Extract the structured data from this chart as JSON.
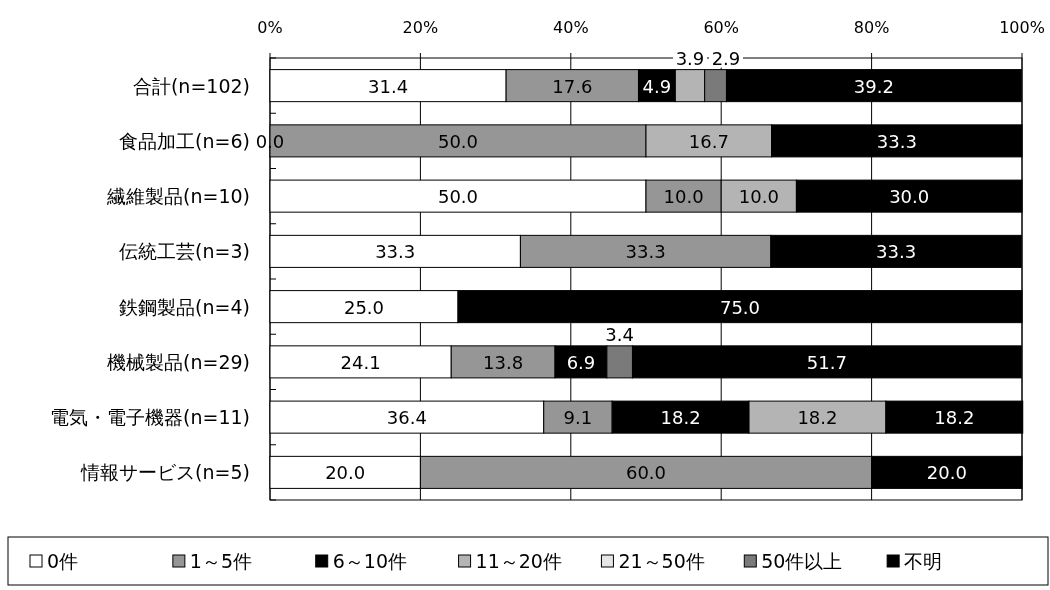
{
  "chart_data": {
    "type": "bar",
    "orientation": "horizontal",
    "stacked": true,
    "categories": [
      "合計(n=102)",
      "食品加工(n=6)",
      "繊維製品(n=10)",
      "伝統工芸(n=3)",
      "鉄鋼製品(n=4)",
      "機械製品(n=29)",
      "電気・電子機器(n=11)",
      "情報サービス(n=5)"
    ],
    "series": [
      {
        "name": "0件",
        "color": "#ffffff",
        "values": [
          31.4,
          null,
          50.0,
          33.3,
          25.0,
          24.1,
          36.4,
          20.0
        ],
        "value_labels": [
          "31.4",
          null,
          "50.0",
          "33.3",
          "25.0",
          "24.1",
          "36.4",
          "20.0"
        ]
      },
      {
        "name": "1～5件",
        "color": "#969696",
        "values": [
          17.6,
          50.0,
          10.0,
          33.3,
          null,
          13.8,
          9.1,
          60.0
        ],
        "value_labels": [
          "17.6",
          "50.0",
          "10.0",
          "33.3",
          null,
          "13.8",
          "9.1",
          "60.0"
        ]
      },
      {
        "name": "6～10件",
        "color": "#000000",
        "values": [
          4.9,
          null,
          null,
          null,
          null,
          6.9,
          18.2,
          null
        ],
        "value_labels": [
          "4.9",
          null,
          null,
          null,
          null,
          "6.9",
          "18.2",
          null
        ]
      },
      {
        "name": "11～20件",
        "color": "#b4b4b4",
        "values": [
          3.9,
          16.7,
          10.0,
          null,
          null,
          null,
          18.2,
          null
        ],
        "value_labels": [
          "3.9",
          "16.7",
          "10.0",
          null,
          null,
          null,
          "18.2",
          null
        ]
      },
      {
        "name": "21～50件",
        "color": "#e6e6e6",
        "values": [
          null,
          null,
          null,
          null,
          null,
          null,
          null,
          null
        ]
      },
      {
        "name": "50件以上",
        "color": "#7a7a7a",
        "values": [
          2.9,
          null,
          null,
          null,
          null,
          3.4,
          null,
          null
        ],
        "value_labels": [
          "2.9",
          null,
          null,
          null,
          null,
          "3.4",
          null,
          null
        ]
      },
      {
        "name": "不明",
        "color": "#000001",
        "values": [
          39.2,
          33.3,
          30.0,
          33.3,
          75.0,
          51.7,
          18.2,
          20.0
        ],
        "value_labels": [
          "39.2",
          "33.3",
          "30.0",
          "33.3",
          "75.0",
          "51.7",
          "18.2",
          "20.0"
        ]
      }
    ],
    "xlim": [
      0,
      100
    ],
    "xticks": [
      {
        "value": 0,
        "label": "0%"
      },
      {
        "value": 20,
        "label": "20%"
      },
      {
        "value": 40,
        "label": "40%"
      },
      {
        "value": 60,
        "label": "60%"
      },
      {
        "value": 80,
        "label": "80%"
      },
      {
        "value": 100,
        "label": "100%"
      }
    ],
    "annotations": [
      {
        "text": "0.0",
        "x": 0,
        "y": "食品加工(n=6)"
      }
    ],
    "grid": "x",
    "legend": "bottom"
  }
}
